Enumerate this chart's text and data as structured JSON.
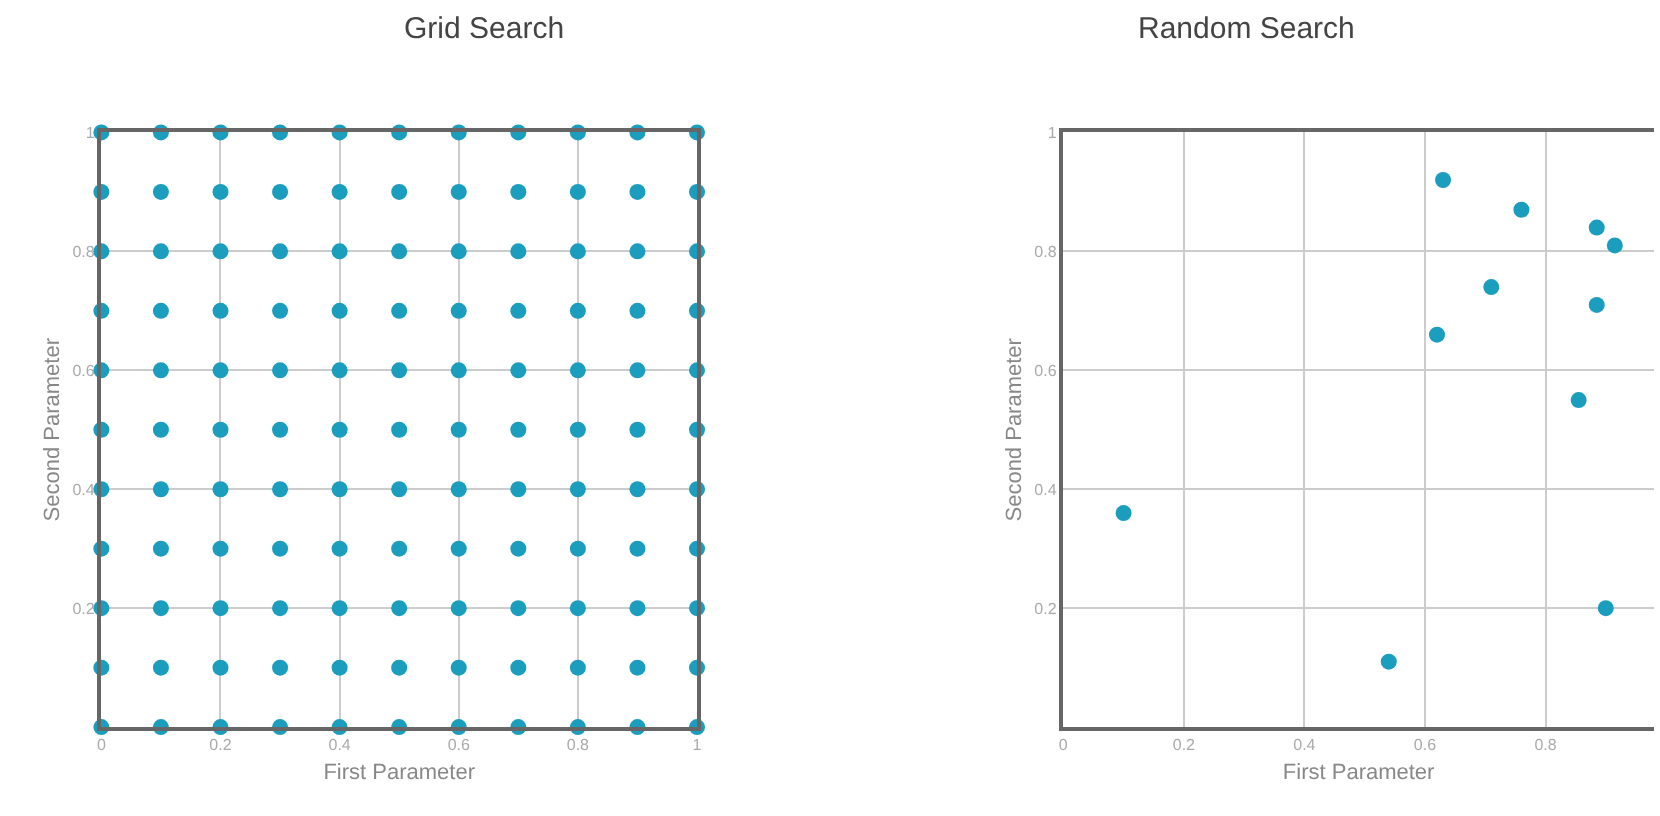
{
  "chart_data": [
    {
      "type": "scatter",
      "title": "Grid Search",
      "xlabel": "First Parameter",
      "ylabel": "Second Parameter",
      "marker": "circle",
      "grid": true,
      "x": [
        0,
        0.1,
        0.2,
        0.3,
        0.4,
        0.5,
        0.6,
        0.7,
        0.8,
        0.9,
        1,
        0,
        0.1,
        0.2,
        0.3,
        0.4,
        0.5,
        0.6,
        0.7,
        0.8,
        0.9,
        1,
        0,
        0.1,
        0.2,
        0.3,
        0.4,
        0.5,
        0.6,
        0.7,
        0.8,
        0.9,
        1,
        0,
        0.1,
        0.2,
        0.3,
        0.4,
        0.5,
        0.6,
        0.7,
        0.8,
        0.9,
        1,
        0,
        0.1,
        0.2,
        0.3,
        0.4,
        0.5,
        0.6,
        0.7,
        0.8,
        0.9,
        1,
        0,
        0.1,
        0.2,
        0.3,
        0.4,
        0.5,
        0.6,
        0.7,
        0.8,
        0.9,
        1,
        0,
        0.1,
        0.2,
        0.3,
        0.4,
        0.5,
        0.6,
        0.7,
        0.8,
        0.9,
        1,
        0,
        0.1,
        0.2,
        0.3,
        0.4,
        0.5,
        0.6,
        0.7,
        0.8,
        0.9,
        1,
        0,
        0.1,
        0.2,
        0.3,
        0.4,
        0.5,
        0.6,
        0.7,
        0.8,
        0.9,
        1,
        0,
        0.1,
        0.2,
        0.3,
        0.4,
        0.5,
        0.6,
        0.7,
        0.8,
        0.9,
        1,
        0,
        0.1,
        0.2,
        0.3,
        0.4,
        0.5,
        0.6,
        0.7,
        0.8,
        0.9,
        1
      ],
      "series": [
        {
          "color": "#1b9dbd",
          "values": [
            0,
            0,
            0,
            0,
            0,
            0,
            0,
            0,
            0,
            0,
            0,
            0.1,
            0.1,
            0.1,
            0.1,
            0.1,
            0.1,
            0.1,
            0.1,
            0.1,
            0.1,
            0.1,
            0.2,
            0.2,
            0.2,
            0.2,
            0.2,
            0.2,
            0.2,
            0.2,
            0.2,
            0.2,
            0.2,
            0.3,
            0.3,
            0.3,
            0.3,
            0.3,
            0.3,
            0.3,
            0.3,
            0.3,
            0.3,
            0.3,
            0.4,
            0.4,
            0.4,
            0.4,
            0.4,
            0.4,
            0.4,
            0.4,
            0.4,
            0.4,
            0.4,
            0.5,
            0.5,
            0.5,
            0.5,
            0.5,
            0.5,
            0.5,
            0.5,
            0.5,
            0.5,
            0.5,
            0.6,
            0.6,
            0.6,
            0.6,
            0.6,
            0.6,
            0.6,
            0.6,
            0.6,
            0.6,
            0.6,
            0.7,
            0.7,
            0.7,
            0.7,
            0.7,
            0.7,
            0.7,
            0.7,
            0.7,
            0.7,
            0.7,
            0.8,
            0.8,
            0.8,
            0.8,
            0.8,
            0.8,
            0.8,
            0.8,
            0.8,
            0.8,
            0.8,
            0.9,
            0.9,
            0.9,
            0.9,
            0.9,
            0.9,
            0.9,
            0.9,
            0.9,
            0.9,
            0.9,
            1,
            1,
            1,
            1,
            1,
            1,
            1,
            1,
            1,
            1,
            1
          ]
        }
      ],
      "xlim": [
        0,
        1
      ],
      "ylim": [
        0,
        1
      ],
      "xticks": [
        0,
        0.2,
        0.4,
        0.6,
        0.8,
        1
      ],
      "yticks": [
        {
          "value": 0,
          "label": null
        },
        0.2,
        0.4,
        0.6,
        0.8,
        1
      ]
    },
    {
      "type": "scatter",
      "title": "Random Search",
      "xlabel": "First Parameter",
      "ylabel": "Second Parameter",
      "marker": "circle",
      "grid": true,
      "x": [
        0.1,
        0.54,
        0.62,
        0.63,
        0.71,
        0.76,
        0.855,
        0.885,
        0.885,
        0.915,
        0.9
      ],
      "series": [
        {
          "color": "#1b9dbd",
          "values": [
            0.36,
            0.11,
            0.66,
            0.92,
            0.74,
            0.87,
            0.55,
            0.84,
            0.71,
            0.81,
            0.2
          ]
        }
      ],
      "xlim": [
        0,
        0.98
      ],
      "ylim": [
        0,
        1
      ],
      "xticks": [
        0,
        0.2,
        0.4,
        0.6,
        0.8
      ],
      "yticks": [
        {
          "value": 0,
          "label": null
        },
        0.2,
        0.4,
        0.6,
        0.8,
        1
      ]
    }
  ]
}
